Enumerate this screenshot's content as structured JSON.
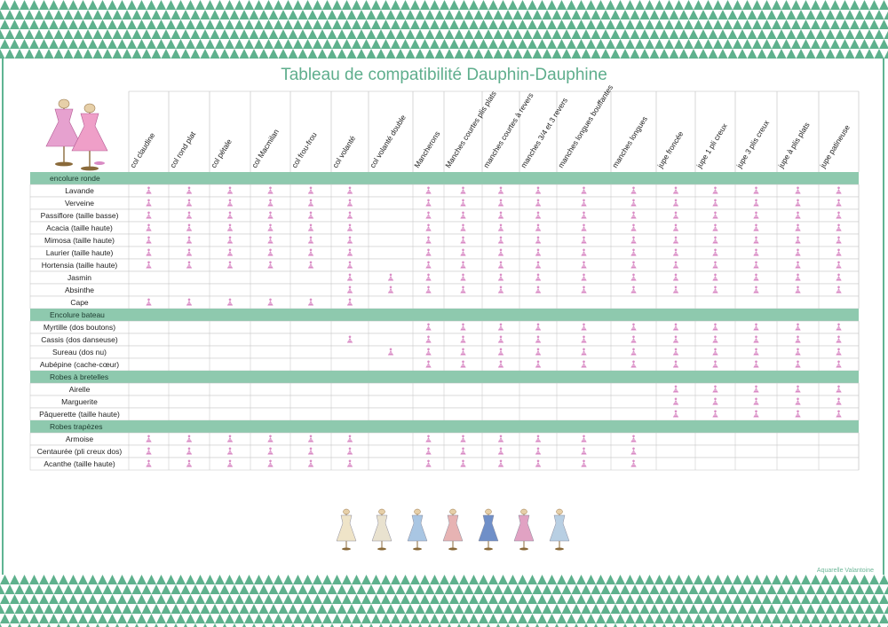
{
  "title": "Tableau de compatibilité Dauphin-Dauphine",
  "credit": "Aquarelle Valantoine",
  "colors": {
    "accent": "#5fae8d",
    "section_band": "#8ec9ae",
    "mark": "#d98ac4"
  },
  "columns": [
    "col claudine",
    "col rond plat",
    "col pétale",
    "col Macmilan",
    "col frou-frou",
    "col volanté",
    "col volanté double",
    "Mancherons",
    "Manches courtes plis plats",
    "manches courtes à revers",
    "manches 3/4 et 3 revers",
    "manches longues bouffantes",
    "manches longues",
    "jupe froncée",
    "jupe 1 pli creux",
    "jupe 3 plis creux",
    "jupe à plis plats",
    "jupe patineuse"
  ],
  "sections": [
    {
      "title": "encolure ronde",
      "rows": [
        {
          "name": "Lavande",
          "marks": [
            1,
            1,
            1,
            1,
            1,
            1,
            0,
            1,
            1,
            1,
            1,
            1,
            1,
            1,
            1,
            1,
            1,
            1
          ]
        },
        {
          "name": "Verveine",
          "marks": [
            1,
            1,
            1,
            1,
            1,
            1,
            0,
            1,
            1,
            1,
            1,
            1,
            1,
            1,
            1,
            1,
            1,
            1
          ]
        },
        {
          "name": "Passiflore (taille basse)",
          "marks": [
            1,
            1,
            1,
            1,
            1,
            1,
            0,
            1,
            1,
            1,
            1,
            1,
            1,
            1,
            1,
            1,
            1,
            1
          ]
        },
        {
          "name": "Acacia (taille haute)",
          "marks": [
            1,
            1,
            1,
            1,
            1,
            1,
            0,
            1,
            1,
            1,
            1,
            1,
            1,
            1,
            1,
            1,
            1,
            1
          ]
        },
        {
          "name": "Mimosa (taille haute)",
          "marks": [
            1,
            1,
            1,
            1,
            1,
            1,
            0,
            1,
            1,
            1,
            1,
            1,
            1,
            1,
            1,
            1,
            1,
            1
          ]
        },
        {
          "name": "Laurier (taille haute)",
          "marks": [
            1,
            1,
            1,
            1,
            1,
            1,
            0,
            1,
            1,
            1,
            1,
            1,
            1,
            1,
            1,
            1,
            1,
            1
          ]
        },
        {
          "name": "Hortensia (taille haute)",
          "marks": [
            1,
            1,
            1,
            1,
            1,
            1,
            0,
            1,
            1,
            1,
            1,
            1,
            1,
            1,
            1,
            1,
            1,
            1
          ]
        },
        {
          "name": "Jasmin",
          "marks": [
            0,
            0,
            0,
            0,
            0,
            1,
            1,
            1,
            1,
            1,
            1,
            1,
            1,
            1,
            1,
            1,
            1,
            1
          ]
        },
        {
          "name": "Absinthe",
          "marks": [
            0,
            0,
            0,
            0,
            0,
            1,
            1,
            1,
            1,
            1,
            1,
            1,
            1,
            1,
            1,
            1,
            1,
            1
          ]
        },
        {
          "name": "Cape",
          "marks": [
            1,
            1,
            1,
            1,
            1,
            1,
            0,
            0,
            0,
            0,
            0,
            0,
            0,
            0,
            0,
            0,
            0,
            0
          ]
        }
      ]
    },
    {
      "title": "Encolure bateau",
      "rows": [
        {
          "name": "Myrtille (dos boutons)",
          "marks": [
            0,
            0,
            0,
            0,
            0,
            0,
            0,
            1,
            1,
            1,
            1,
            1,
            1,
            1,
            1,
            1,
            1,
            1
          ]
        },
        {
          "name": "Cassis (dos danseuse)",
          "marks": [
            0,
            0,
            0,
            0,
            0,
            1,
            0,
            1,
            1,
            1,
            1,
            1,
            1,
            1,
            1,
            1,
            1,
            1
          ]
        },
        {
          "name": "Sureau (dos nu)",
          "marks": [
            0,
            0,
            0,
            0,
            0,
            0,
            1,
            1,
            1,
            1,
            1,
            1,
            1,
            1,
            1,
            1,
            1,
            1
          ]
        },
        {
          "name": "Aubépine (cache-cœur)",
          "marks": [
            0,
            0,
            0,
            0,
            0,
            0,
            0,
            1,
            1,
            1,
            1,
            1,
            1,
            1,
            1,
            1,
            1,
            1
          ]
        }
      ]
    },
    {
      "title": "Robes à bretelles",
      "rows": [
        {
          "name": "Airelle",
          "marks": [
            0,
            0,
            0,
            0,
            0,
            0,
            0,
            0,
            0,
            0,
            0,
            0,
            0,
            1,
            1,
            1,
            1,
            1
          ]
        },
        {
          "name": "Marguerite",
          "marks": [
            0,
            0,
            0,
            0,
            0,
            0,
            0,
            0,
            0,
            0,
            0,
            0,
            0,
            1,
            1,
            1,
            1,
            1
          ]
        },
        {
          "name": "Pâquerette (taille haute)",
          "marks": [
            0,
            0,
            0,
            0,
            0,
            0,
            0,
            0,
            0,
            0,
            0,
            0,
            0,
            1,
            1,
            1,
            1,
            1
          ]
        }
      ]
    },
    {
      "title": "Robes trapèzes",
      "rows": [
        {
          "name": "Armoise",
          "marks": [
            1,
            1,
            1,
            1,
            1,
            1,
            0,
            1,
            1,
            1,
            1,
            1,
            1,
            0,
            0,
            0,
            0,
            0
          ]
        },
        {
          "name": "Centaurée (pli creux dos)",
          "marks": [
            1,
            1,
            1,
            1,
            1,
            1,
            0,
            1,
            1,
            1,
            1,
            1,
            1,
            0,
            0,
            0,
            0,
            0
          ]
        },
        {
          "name": "Acanthe (taille haute)",
          "marks": [
            1,
            1,
            1,
            1,
            1,
            1,
            0,
            1,
            1,
            1,
            1,
            1,
            1,
            0,
            0,
            0,
            0,
            0
          ]
        }
      ]
    }
  ],
  "illustrations": [
    {
      "icon": "dress-form-ivory-icon",
      "color": "#efe4c8"
    },
    {
      "icon": "dress-form-cream-icon",
      "color": "#e9e2cf"
    },
    {
      "icon": "dress-form-blue-icon",
      "color": "#a9c6e3"
    },
    {
      "icon": "dress-form-pink-apron-icon",
      "color": "#e7b3b3"
    },
    {
      "icon": "dress-form-navy-icon",
      "color": "#6f8fc8"
    },
    {
      "icon": "dress-form-rose-icon",
      "color": "#e1a2c3"
    },
    {
      "icon": "dress-form-dotted-icon",
      "color": "#b8cfe3"
    }
  ]
}
